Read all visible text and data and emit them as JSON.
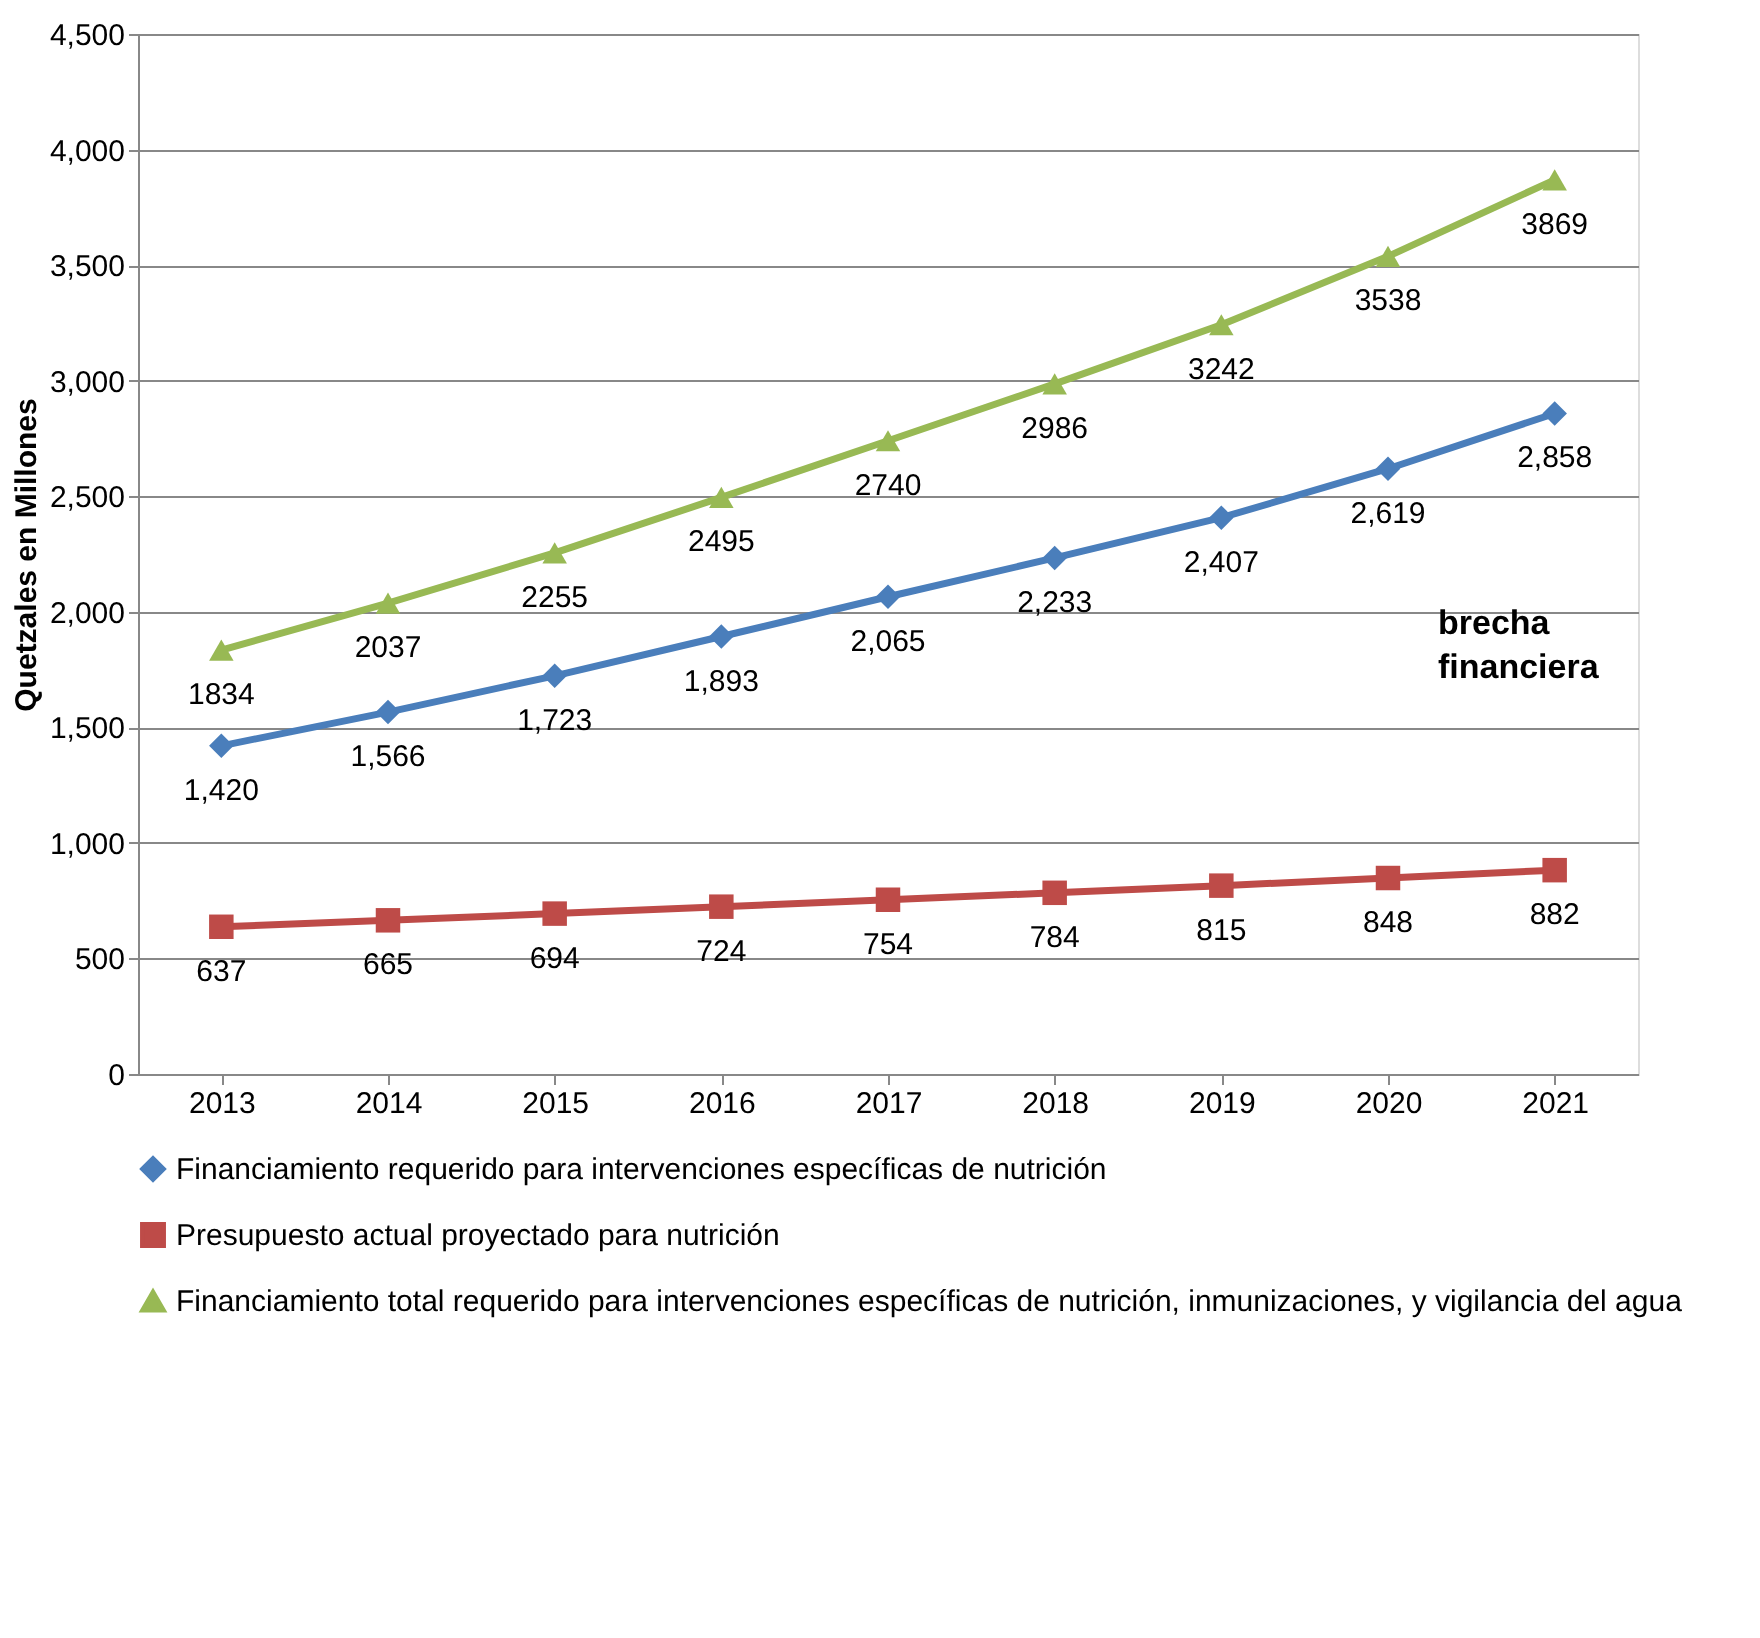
{
  "chart_data": {
    "type": "line",
    "ylabel": "Quetzales en Millones",
    "categories": [
      "2013",
      "2014",
      "2015",
      "2016",
      "2017",
      "2018",
      "2019",
      "2020",
      "2021"
    ],
    "ylim": [
      0,
      4500
    ],
    "yticks": [
      {
        "value": 0,
        "label": "0"
      },
      {
        "value": 500,
        "label": "500"
      },
      {
        "value": 1000,
        "label": "1,000"
      },
      {
        "value": 1500,
        "label": "1,500"
      },
      {
        "value": 2000,
        "label": "2,000"
      },
      {
        "value": 2500,
        "label": "2,500"
      },
      {
        "value": 3000,
        "label": "3,000"
      },
      {
        "value": 3500,
        "label": "3,500"
      },
      {
        "value": 4000,
        "label": "4,000"
      },
      {
        "value": 4500,
        "label": "4,500"
      }
    ],
    "grid": "y",
    "legend": "bottom",
    "line_style": "solid",
    "annotations": [
      "brecha financiera"
    ],
    "series": [
      {
        "name": "Financiamiento requerido para intervenciones específicas de nutrición",
        "color": "#4a7ebb",
        "marker": "diamond",
        "values": [
          1420,
          1566,
          1723,
          1893,
          2065,
          2233,
          2407,
          2619,
          2858
        ],
        "value_labels": [
          "1,420",
          "1,566",
          "1,723",
          "1,893",
          "2,065",
          "2,233",
          "2,407",
          "2,619",
          "2,858"
        ]
      },
      {
        "name": "Presupuesto actual proyectado para nutrición",
        "color": "#be4b48",
        "marker": "square",
        "values": [
          637,
          665,
          694,
          724,
          754,
          784,
          815,
          848,
          882
        ],
        "value_labels": [
          "637",
          "665",
          "694",
          "724",
          "754",
          "784",
          "815",
          "848",
          "882"
        ]
      },
      {
        "name": "Financiamiento total requerido para intervenciones específicas de nutrición, inmunizaciones, y vigilancia del agua",
        "color": "#98b954",
        "marker": "triangle",
        "values": [
          1834,
          2037,
          2255,
          2495,
          2740,
          2986,
          3242,
          3538,
          3869
        ],
        "value_labels": [
          "1834",
          "2037",
          "2255",
          "2495",
          "2740",
          "2986",
          "3242",
          "3538",
          "3869"
        ]
      }
    ]
  }
}
